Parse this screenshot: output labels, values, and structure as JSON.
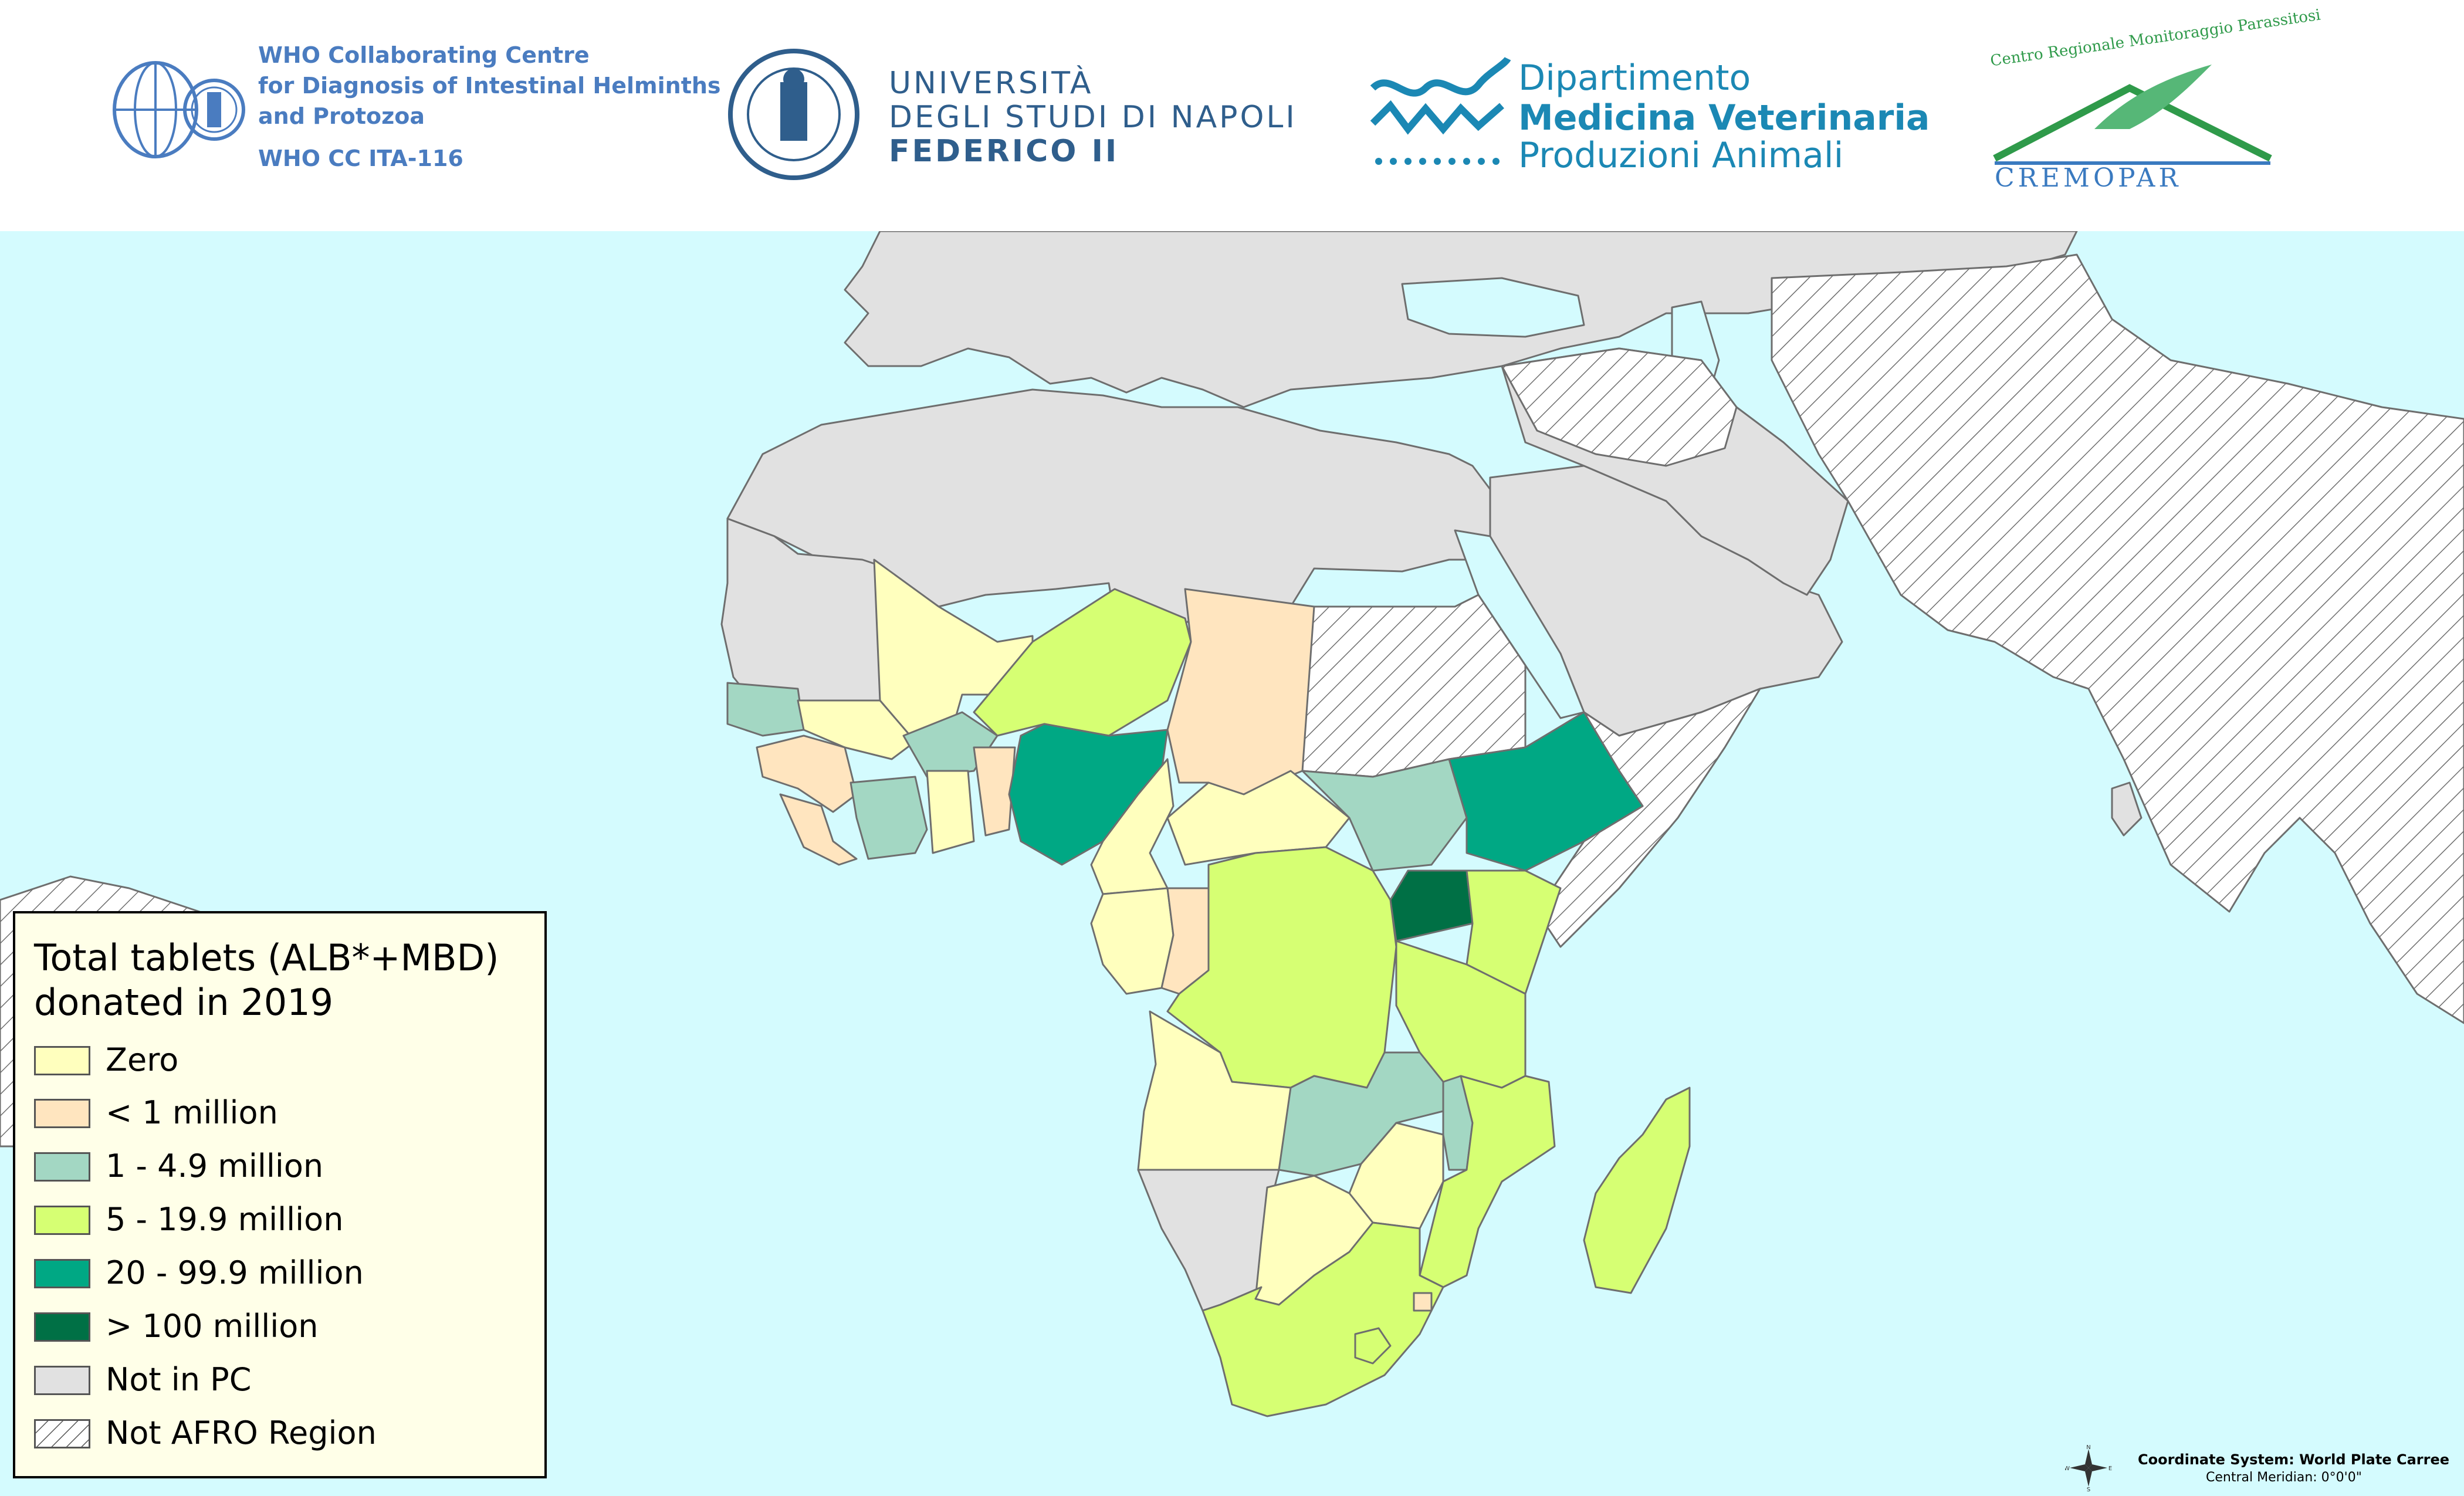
{
  "header": {
    "who": {
      "line1": "WHO Collaborating Centre",
      "line2": "for Diagnosis of Intestinal Helminths",
      "line3": "and Protozoa",
      "line4": "WHO CC ITA-116",
      "color": "#4a7cc0"
    },
    "university": {
      "line1": "UNIVERSITÀ",
      "line2": "DEGLI STUDI DI NAPOLI",
      "line3": "FEDERICO II",
      "color": "#2f5e8c"
    },
    "department": {
      "line1": "Dipartimento",
      "line2": "Medicina Veterinaria",
      "line3": "Produzioni Animali",
      "color": "#1b88b4"
    },
    "cremopar": {
      "arc_text": "Centro Regionale Monitoraggio Parassitosi",
      "name": "CREMOPAR",
      "color": "#2f9a4a"
    }
  },
  "legend": {
    "title_line1": "Total tablets (ALB*+MBD)",
    "title_line2": "donated in 2019",
    "items": [
      {
        "label": "Zero",
        "color": "#ffffbe"
      },
      {
        "label": "< 1 million",
        "color": "#ffe5bf"
      },
      {
        "label": "1 - 4.9 million",
        "color": "#a3d7c3"
      },
      {
        "label": "5 - 19.9 million",
        "color": "#d6ff73"
      },
      {
        "label": "20 - 99.9 million",
        "color": "#00a884"
      },
      {
        "label": "> 100 million",
        "color": "#007045"
      },
      {
        "label": "Not in PC",
        "color": "#e1e1e1"
      },
      {
        "label": "Not AFRO Region",
        "color": "hatch"
      }
    ]
  },
  "coordinate_system": {
    "line1": "Coordinate System: World Plate Carree",
    "line2": "Central Meridian: 0°0'0\"",
    "compass": {
      "n": "N",
      "s": "S",
      "e": "E",
      "w": "W"
    }
  },
  "colors": {
    "ocean": "#d4fbfe",
    "border": "#6e6e6e"
  }
}
